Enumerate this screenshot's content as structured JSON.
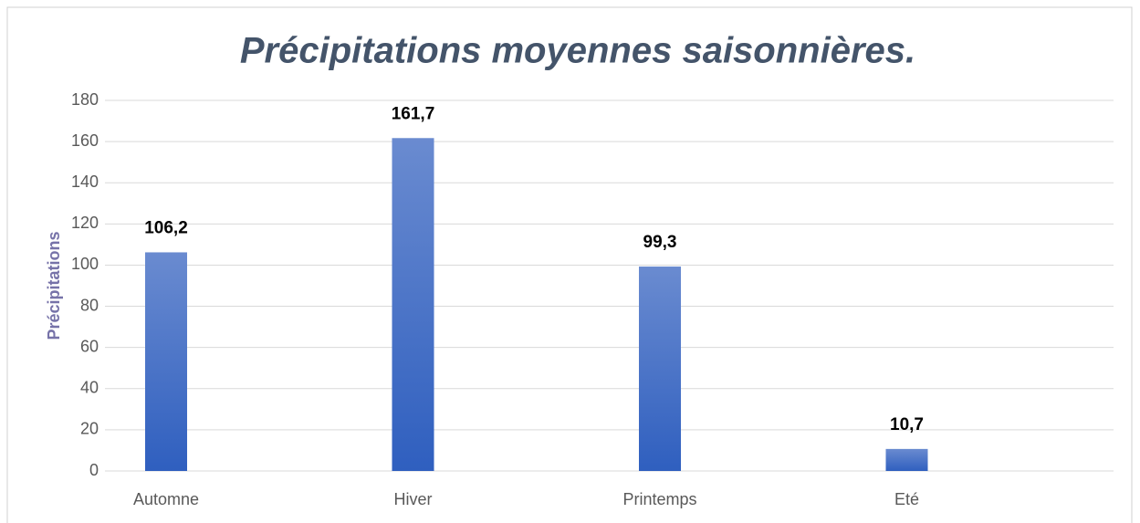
{
  "chart_data": {
    "type": "bar",
    "title": "Précipitations moyennes saisonnières.",
    "y_label": "Précipitations",
    "categories": [
      "Automne",
      "Hiver",
      "Printemps",
      "Eté"
    ],
    "values": [
      106.2,
      161.7,
      99.3,
      10.7
    ],
    "value_labels": [
      "106,2",
      "161,7",
      "99,3",
      "10,7"
    ],
    "color": "#4472c4",
    "ylim": [
      0,
      180
    ],
    "yticks": [
      0,
      20,
      40,
      60,
      80,
      100,
      120,
      140,
      160,
      180
    ],
    "grid": true
  }
}
